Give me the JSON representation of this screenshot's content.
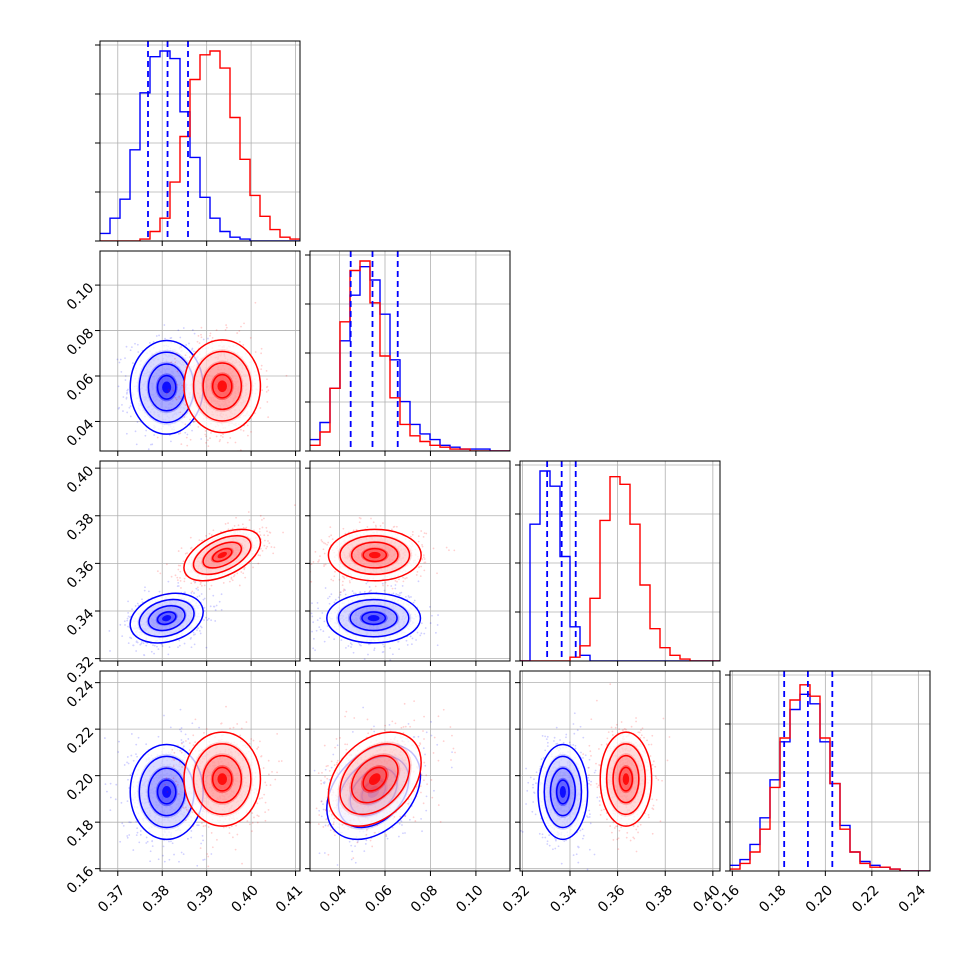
{
  "chart_data": {
    "type": "corner",
    "colors": {
      "series_a": "#0000ff",
      "series_b": "#ff0000"
    },
    "grid": true,
    "parameters": [
      {
        "range": [
          0.366,
          0.411
        ],
        "ticks": [
          0.37,
          0.38,
          0.39,
          0.4,
          0.41
        ],
        "tick_labels": [
          "0.37",
          "0.38",
          "0.39",
          "0.40",
          "0.41"
        ]
      },
      {
        "range": [
          0.027,
          0.115
        ],
        "ticks": [
          0.04,
          0.06,
          0.08,
          0.1
        ],
        "tick_labels": [
          "0.04",
          "0.06",
          "0.08",
          "0.10"
        ]
      },
      {
        "range": [
          0.319,
          0.403
        ],
        "ticks": [
          0.32,
          0.34,
          0.36,
          0.38,
          0.4
        ],
        "tick_labels": [
          "0.32",
          "0.34",
          "0.36",
          "0.38",
          "0.40"
        ]
      },
      {
        "range": [
          0.159,
          0.245
        ],
        "ticks": [
          0.16,
          0.18,
          0.2,
          0.22,
          0.24
        ],
        "tick_labels": [
          "0.16",
          "0.18",
          "0.20",
          "0.22",
          "0.24"
        ]
      }
    ],
    "series": [
      {
        "color": "#0000ff",
        "means": [
          0.381,
          0.055,
          0.337,
          0.193
        ],
        "sigmas": [
          0.0041,
          0.0103,
          0.0052,
          0.0102
        ],
        "correlations": {
          "0-1": 0.0,
          "0-2": 0.25,
          "0-3": 0.0,
          "1-2": 0.0,
          "1-3": 0.35,
          "2-3": 0.0
        },
        "quantiles": [
          [
            0.3768,
            0.3812,
            0.3858
          ],
          [
            0.0449,
            0.0545,
            0.0656
          ],
          [
            0.3304,
            0.3365,
            0.3424
          ],
          [
            0.1823,
            0.1925,
            0.203
          ]
        ],
        "histograms": [
          [
            0.04,
            0.12,
            0.22,
            0.48,
            0.78,
            0.97,
            1.0,
            0.96,
            0.68,
            0.44,
            0.23,
            0.12,
            0.05,
            0.02,
            0.01,
            0.0,
            0.0,
            0.0,
            0.0,
            0.0
          ],
          [
            0.06,
            0.15,
            0.33,
            0.58,
            0.82,
            0.97,
            0.9,
            0.72,
            0.48,
            0.26,
            0.14,
            0.09,
            0.06,
            0.03,
            0.02,
            0.01,
            0.01,
            0.01,
            0.0,
            0.0
          ],
          [
            0.0,
            0.72,
            1.0,
            0.92,
            0.55,
            0.18,
            0.03,
            0.0,
            0.0,
            0.0,
            0.0,
            0.0,
            0.0,
            0.0,
            0.0,
            0.0,
            0.0,
            0.0,
            0.0,
            0.0
          ],
          [
            0.03,
            0.06,
            0.14,
            0.28,
            0.48,
            0.68,
            0.85,
            0.93,
            0.88,
            0.68,
            0.46,
            0.24,
            0.1,
            0.05,
            0.03,
            0.02,
            0.01,
            0.0,
            0.0,
            0.0
          ]
        ]
      },
      {
        "color": "#ff0000",
        "means": [
          0.3935,
          0.0555,
          0.3635,
          0.1985
        ],
        "sigmas": [
          0.0043,
          0.0102,
          0.0054,
          0.0101
        ],
        "correlations": {
          "0-1": 0.0,
          "0-2": 0.5,
          "0-3": 0.0,
          "1-2": 0.0,
          "1-3": 0.35,
          "2-3": 0.0
        },
        "histograms": [
          [
            0.0,
            0.0,
            0.0,
            0.0,
            0.01,
            0.05,
            0.12,
            0.31,
            0.55,
            0.85,
            0.98,
            1.0,
            0.91,
            0.65,
            0.43,
            0.24,
            0.13,
            0.06,
            0.02,
            0.01
          ],
          [
            0.03,
            0.1,
            0.33,
            0.68,
            0.95,
            1.0,
            0.78,
            0.5,
            0.28,
            0.14,
            0.08,
            0.05,
            0.03,
            0.02,
            0.01,
            0.01,
            0.0,
            0.0,
            0.0,
            0.0
          ],
          [
            0.0,
            0.0,
            0.0,
            0.0,
            0.0,
            0.02,
            0.08,
            0.33,
            0.74,
            0.97,
            0.93,
            0.72,
            0.4,
            0.17,
            0.07,
            0.03,
            0.01,
            0.0,
            0.0,
            0.0
          ],
          [
            0.01,
            0.04,
            0.1,
            0.22,
            0.44,
            0.7,
            0.9,
            0.98,
            0.92,
            0.7,
            0.46,
            0.22,
            0.1,
            0.04,
            0.02,
            0.02,
            0.01,
            0.0,
            0.0,
            0.0
          ]
        ]
      }
    ]
  }
}
